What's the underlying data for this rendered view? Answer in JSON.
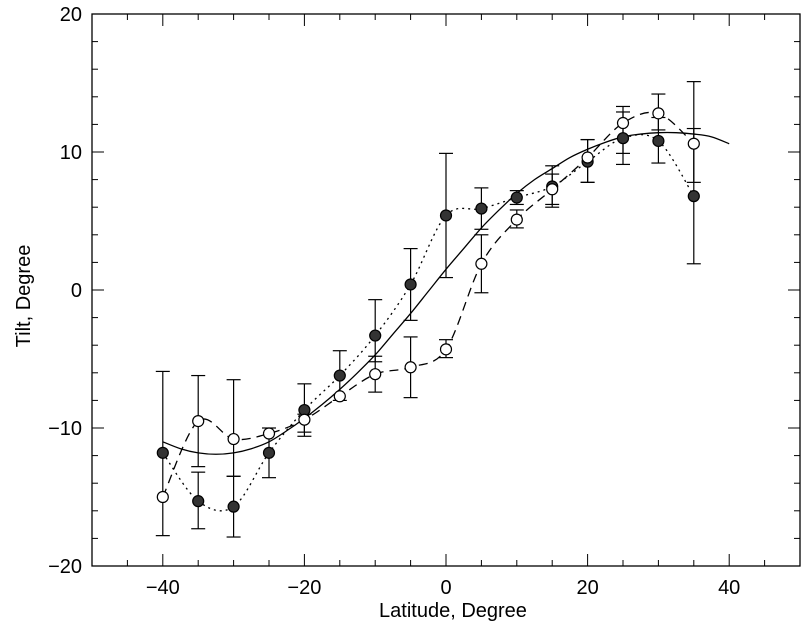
{
  "chart_data": {
    "type": "scatter",
    "xlabel": "Latitude, Degree",
    "ylabel": "Tilt, Degree",
    "xlim": [
      -50,
      50
    ],
    "ylim": [
      -20,
      20
    ],
    "x_ticks": [
      -40,
      -20,
      0,
      20,
      40
    ],
    "y_ticks": [
      -20,
      -10,
      0,
      10,
      20
    ],
    "x_minor_step": 5,
    "y_minor_step": 2,
    "grid": false,
    "series": [
      {
        "marker": "filled-circle",
        "line_style": "dotted",
        "x": [
          -40,
          -35,
          -30,
          -25,
          -20,
          -15,
          -10,
          -5,
          0,
          5,
          10,
          15,
          20,
          25,
          30,
          35
        ],
        "y": [
          -11.8,
          -15.3,
          -15.7,
          -11.8,
          -8.7,
          -6.2,
          -3.3,
          0.4,
          5.4,
          5.9,
          6.7,
          7.5,
          9.3,
          11.0,
          10.8,
          6.8
        ],
        "err_low": [
          -17.8,
          -17.3,
          -17.9,
          -13.6,
          -10.6,
          -8.0,
          -5.2,
          -2.2,
          0.9,
          4.4,
          6.2,
          6.0,
          7.8,
          9.1,
          9.2,
          1.9
        ],
        "err_high": [
          -5.9,
          -13.2,
          -13.5,
          -10.0,
          -6.8,
          -4.4,
          -0.7,
          3.0,
          9.9,
          7.4,
          7.2,
          9.0,
          10.9,
          12.9,
          12.5,
          11.7
        ]
      },
      {
        "marker": "open-circle",
        "line_style": "dashed",
        "x": [
          -40,
          -35,
          -30,
          -25,
          -20,
          -15,
          -10,
          -5,
          0,
          5,
          10,
          15,
          20,
          25,
          30,
          35
        ],
        "y": [
          -15.0,
          -9.5,
          -10.8,
          -10.4,
          -9.4,
          -7.7,
          -6.1,
          -5.6,
          -4.3,
          1.9,
          5.1,
          7.3,
          9.6,
          12.1,
          12.8,
          10.6
        ],
        "err_low": [
          -15.0,
          -12.8,
          -13.5,
          -10.4,
          -10.3,
          -7.7,
          -7.4,
          -7.8,
          -4.9,
          -0.2,
          4.5,
          6.2,
          7.8,
          9.9,
          11.6,
          7.8
        ],
        "err_high": [
          -15.0,
          -6.2,
          -6.5,
          -10.4,
          -9.0,
          -7.7,
          -4.8,
          -3.4,
          -3.6,
          4.0,
          5.8,
          8.4,
          10.9,
          13.3,
          14.2,
          15.1
        ]
      },
      {
        "marker": "none",
        "line_style": "solid",
        "x": [
          -40,
          -37.5,
          -35,
          -32.5,
          -30,
          -27.5,
          -25,
          -22.5,
          -20,
          -17.5,
          -15,
          -12.5,
          -10,
          -7.5,
          -5,
          -2.5,
          0,
          2.5,
          5,
          7.5,
          10,
          12.5,
          15,
          17.5,
          20,
          22.5,
          25,
          27.5,
          30,
          32.5,
          35,
          37.5,
          40
        ],
        "y": [
          -11.0,
          -11.5,
          -11.8,
          -11.9,
          -11.8,
          -11.5,
          -11.0,
          -10.2,
          -9.3,
          -8.3,
          -7.2,
          -6.0,
          -4.7,
          -3.2,
          -1.7,
          -0.1,
          1.5,
          3.0,
          4.5,
          5.8,
          7.0,
          8.0,
          8.8,
          9.6,
          10.2,
          10.7,
          11.1,
          11.3,
          11.4,
          11.4,
          11.3,
          11.1,
          10.6
        ]
      }
    ]
  }
}
